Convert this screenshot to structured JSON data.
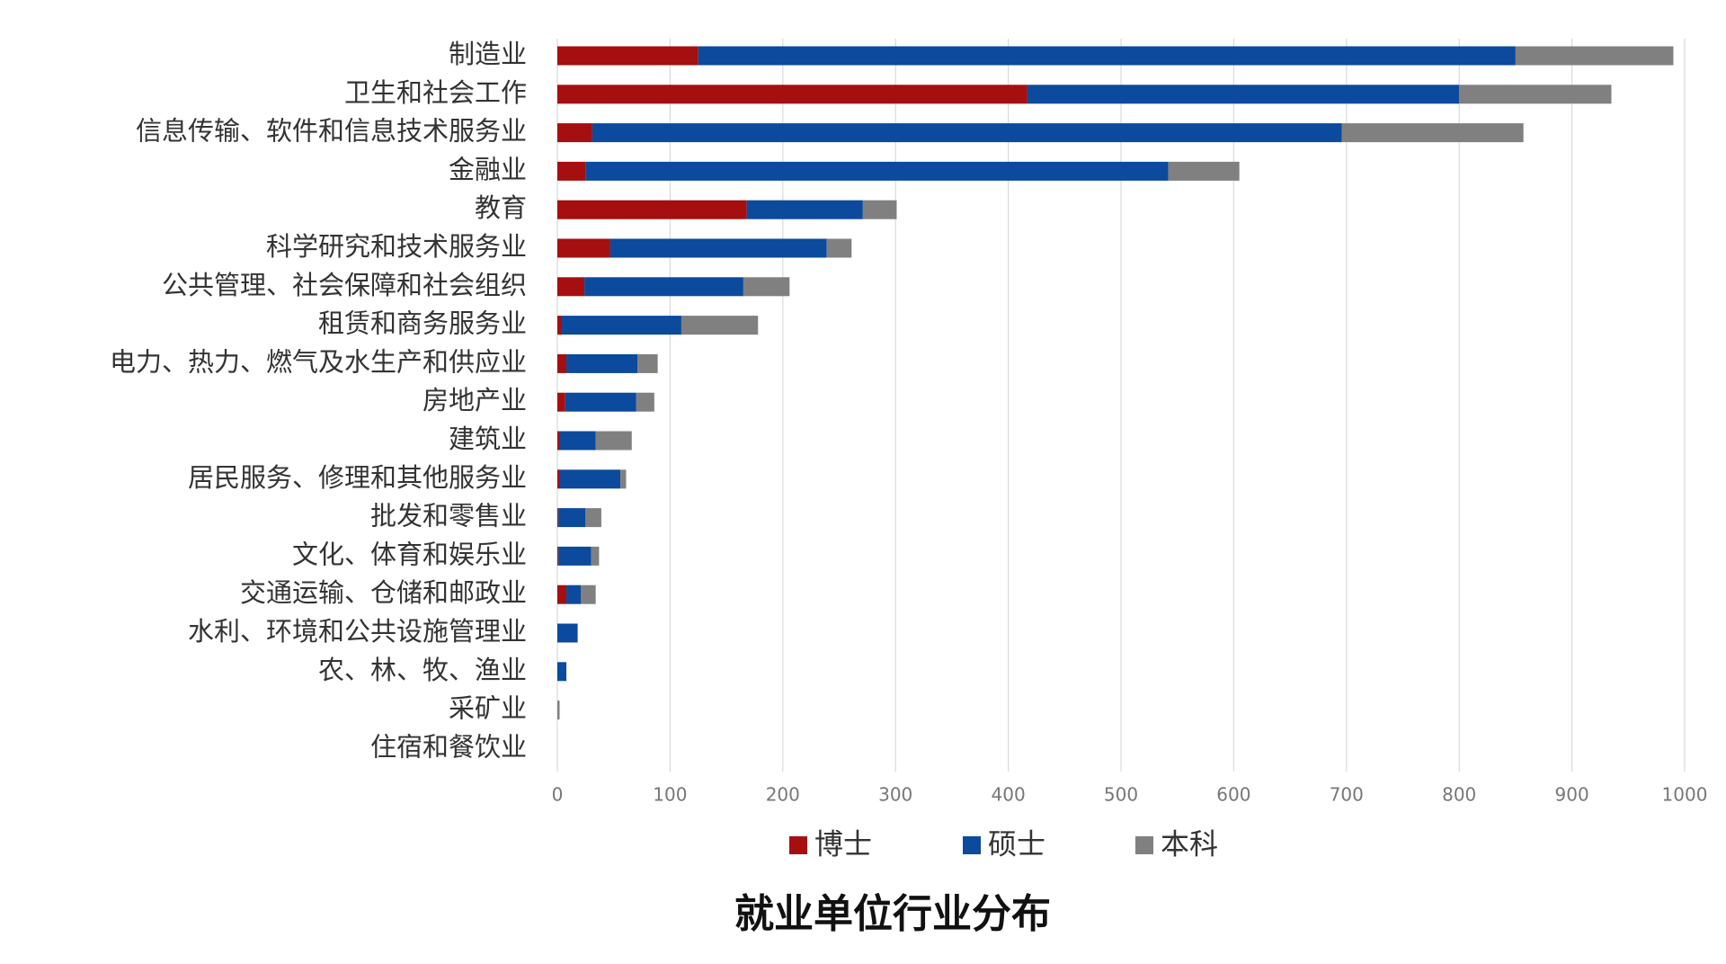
{
  "chart_data": {
    "type": "stacked_barh",
    "title": "就业单位行业分布",
    "categories": [
      "制造业",
      "卫生和社会工作",
      "信息传输、软件和信息技术服务业",
      "金融业",
      "教育",
      "科学研究和技术服务业",
      "公共管理、社会保障和社会组织",
      "租赁和商务服务业",
      "电力、热力、燃气及水生产和供应业",
      "房地产业",
      "建筑业",
      "居民服务、修理和其他服务业",
      "批发和零售业",
      "文化、体育和娱乐业",
      "交通运输、仓储和邮政业",
      "水利、环境和公共设施管理业",
      "农、林、牧、渔业",
      "采矿业",
      "住宿和餐饮业"
    ],
    "series": [
      {
        "name": "博士",
        "color": "#a50f0f",
        "values": [
          125,
          417,
          31,
          25,
          168,
          47,
          24,
          4,
          8,
          7,
          2,
          2,
          1,
          1,
          8,
          0,
          0,
          0,
          0
        ]
      },
      {
        "name": "硕士",
        "color": "#0b4a9c",
        "values": [
          725,
          383,
          665,
          517,
          103,
          192,
          141,
          106,
          63,
          63,
          32,
          54,
          24,
          29,
          13,
          18,
          8,
          0,
          0
        ]
      },
      {
        "name": "本科",
        "color": "#808080",
        "values": [
          140,
          135,
          161,
          63,
          30,
          22,
          41,
          68,
          18,
          16,
          32,
          5,
          14,
          7,
          13,
          0,
          0,
          2,
          0
        ]
      }
    ],
    "xlim": [
      0,
      1000
    ],
    "xticks": [
      0,
      100,
      200,
      300,
      400,
      500,
      600,
      700,
      800,
      900,
      1000
    ],
    "grid": true
  }
}
